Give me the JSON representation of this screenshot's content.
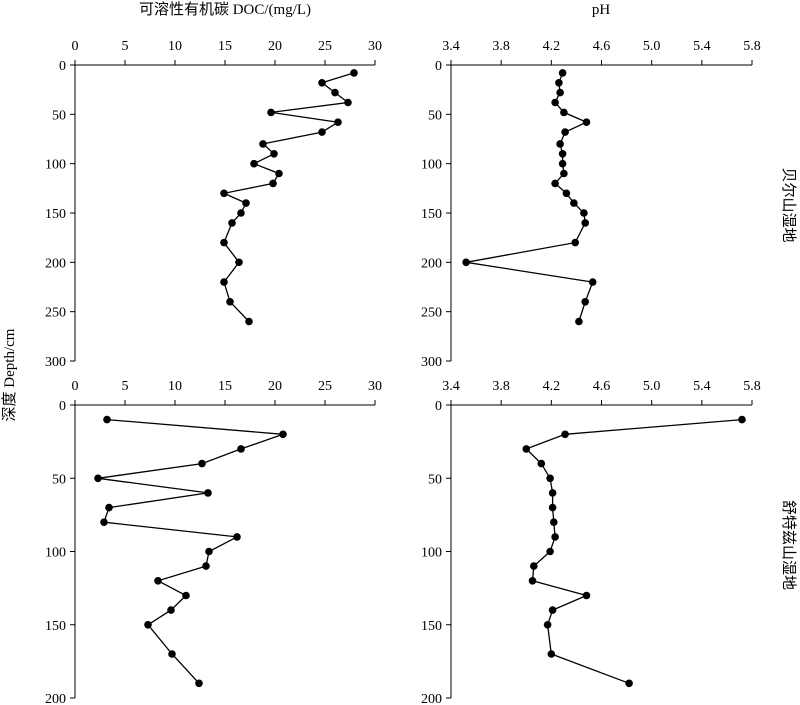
{
  "figure": {
    "y_axis_title": "深度 Depth/cm",
    "top_left_title": "可溶性有机碳 DOC/(mg/L)",
    "top_right_title": "pH",
    "row_labels": [
      "贝尔山湿地",
      "舒特兹山湿地"
    ]
  },
  "chart_data": [
    {
      "type": "line",
      "id": "doc_bershan",
      "xlabel": "可溶性有机碳 DOC/(mg/L)",
      "ylabel": "深度 Depth/cm",
      "row_label": "贝尔山湿地",
      "xlim": [
        0,
        30
      ],
      "xticks": [
        0,
        5,
        10,
        15,
        20,
        25,
        30
      ],
      "xtick_labels": [
        "0",
        "5",
        "10",
        "15",
        "20",
        "25",
        "30"
      ],
      "ylim": [
        0,
        300
      ],
      "yticks": [
        0,
        50,
        100,
        150,
        200,
        250,
        300
      ],
      "ytick_labels": [
        "0",
        "50",
        "100",
        "150",
        "200",
        "250",
        "300"
      ],
      "y_inverted": true,
      "x_axis_position": "top",
      "series": [
        {
          "x": [
            27.9,
            24.7,
            26.0,
            27.3,
            19.6,
            26.3,
            24.7,
            18.8,
            19.9,
            17.9,
            20.4,
            19.8,
            14.9,
            17.1,
            16.6,
            15.7,
            14.9,
            16.4,
            14.9,
            15.5,
            17.4
          ],
          "y": [
            8,
            18,
            28,
            38,
            48,
            58,
            68,
            80,
            90,
            100,
            110,
            120,
            130,
            140,
            150,
            160,
            180,
            200,
            220,
            240,
            260
          ]
        }
      ]
    },
    {
      "type": "line",
      "id": "ph_bershan",
      "xlabel": "pH",
      "ylabel": "深度 Depth/cm",
      "row_label": "贝尔山湿地",
      "xlim": [
        3.4,
        5.8
      ],
      "xticks": [
        3.4,
        3.8,
        4.2,
        4.6,
        5.0,
        5.4,
        5.8
      ],
      "xtick_labels": [
        "3.4",
        "3.8",
        "4.2",
        "4.6",
        "5.0",
        "5.4",
        "5.8"
      ],
      "ylim": [
        0,
        300
      ],
      "yticks": [
        0,
        50,
        100,
        150,
        200,
        250,
        300
      ],
      "ytick_labels": [
        "0",
        "50",
        "100",
        "150",
        "200",
        "250",
        "300"
      ],
      "y_inverted": true,
      "x_axis_position": "top",
      "series": [
        {
          "x": [
            4.29,
            4.26,
            4.27,
            4.23,
            4.3,
            4.48,
            4.31,
            4.27,
            4.29,
            4.29,
            4.3,
            4.23,
            4.32,
            4.38,
            4.46,
            4.47,
            4.39,
            3.52,
            4.53,
            4.47,
            4.42
          ],
          "y": [
            8,
            18,
            28,
            38,
            48,
            58,
            68,
            80,
            90,
            100,
            110,
            120,
            130,
            140,
            150,
            160,
            180,
            200,
            220,
            240,
            260
          ]
        }
      ]
    },
    {
      "type": "line",
      "id": "doc_shutezi",
      "xlabel": "可溶性有机碳 DOC/(mg/L)",
      "ylabel": "深度 Depth/cm",
      "row_label": "舒特兹山湿地",
      "xlim": [
        0,
        30
      ],
      "xticks": [
        0,
        5,
        10,
        15,
        20,
        25,
        30
      ],
      "xtick_labels": [
        "0",
        "5",
        "10",
        "15",
        "20",
        "25",
        "30"
      ],
      "ylim": [
        0,
        200
      ],
      "yticks": [
        0,
        50,
        100,
        150,
        200
      ],
      "ytick_labels": [
        "0",
        "50",
        "100",
        "150",
        "200"
      ],
      "y_inverted": true,
      "x_axis_position": "top",
      "series": [
        {
          "x": [
            3.2,
            20.8,
            16.6,
            12.7,
            2.3,
            13.3,
            3.4,
            2.9,
            16.2,
            13.4,
            13.1,
            8.3,
            11.1,
            9.6,
            7.3,
            9.7,
            12.4
          ],
          "y": [
            10,
            20,
            30,
            40,
            50,
            60,
            70,
            80,
            90,
            100,
            110,
            120,
            130,
            140,
            150,
            170,
            190
          ]
        }
      ]
    },
    {
      "type": "line",
      "id": "ph_shutezi",
      "xlabel": "pH",
      "ylabel": "深度 Depth/cm",
      "row_label": "舒特兹山湿地",
      "xlim": [
        3.4,
        5.8
      ],
      "xticks": [
        3.4,
        3.8,
        4.2,
        4.6,
        5.0,
        5.4,
        5.8
      ],
      "xtick_labels": [
        "3.4",
        "3.8",
        "4.2",
        "4.6",
        "5.0",
        "5.4",
        "5.8"
      ],
      "ylim": [
        0,
        200
      ],
      "yticks": [
        0,
        50,
        100,
        150,
        200
      ],
      "ytick_labels": [
        "0",
        "50",
        "100",
        "150",
        "200"
      ],
      "y_inverted": true,
      "x_axis_position": "top",
      "series": [
        {
          "x": [
            5.72,
            4.31,
            4.0,
            4.12,
            4.19,
            4.21,
            4.21,
            4.22,
            4.23,
            4.19,
            4.06,
            4.05,
            4.48,
            4.21,
            4.17,
            4.2,
            4.82
          ],
          "y": [
            10,
            20,
            30,
            40,
            50,
            60,
            70,
            80,
            90,
            100,
            110,
            120,
            130,
            140,
            150,
            170,
            190
          ]
        }
      ]
    }
  ]
}
